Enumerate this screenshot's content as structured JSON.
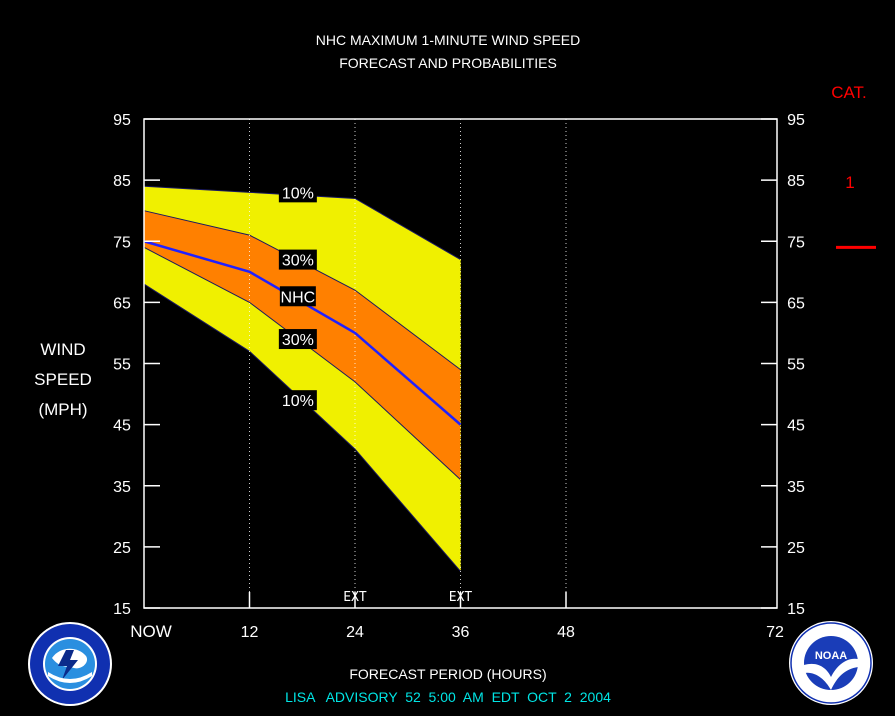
{
  "header": {
    "title_line1": "NHC MAXIMUM 1-MINUTE WIND SPEED",
    "title_line2": "FORECAST AND PROBABILITIES"
  },
  "footer": {
    "advisory": "LISA   ADVISORY  52  5:00  AM  EDT  OCT  2  2004"
  },
  "logos": {
    "left": {
      "name": "national-weather-service-logo",
      "text": "NATIONAL WEATHER SERVICE"
    },
    "right": {
      "name": "noaa-logo",
      "text": "NOAA"
    }
  },
  "colors": {
    "background": "#000000",
    "band_10": "#f0f000",
    "band_30": "#ff8000",
    "nhc_line": "#2020ff",
    "frame": "#ffffff",
    "grid": "#ffffff",
    "category": "#ff0000",
    "footer": "#00e5e5"
  },
  "chart_data": {
    "type": "area",
    "title": "NHC MAXIMUM 1-MINUTE WIND SPEED",
    "subtitle": "FORECAST AND PROBABILITIES",
    "xlabel": "FORECAST PERIOD (HOURS)",
    "ylabel": [
      "WIND",
      "SPEED",
      "(MPH)"
    ],
    "xlim": [
      0,
      72
    ],
    "ylim": [
      15,
      95
    ],
    "x_ticks": [
      {
        "x": 0,
        "label": "NOW"
      },
      {
        "x": 12,
        "label": "12"
      },
      {
        "x": 24,
        "label": "24"
      },
      {
        "x": 36,
        "label": "36"
      },
      {
        "x": 48,
        "label": "48"
      },
      {
        "x": 72,
        "label": "72"
      }
    ],
    "y_ticks": [
      15,
      25,
      35,
      45,
      55,
      65,
      75,
      85,
      95
    ],
    "vertical_gridlines": [
      12,
      24,
      36,
      48
    ],
    "ext_markers": [
      {
        "x": 24,
        "label": "EXT"
      },
      {
        "x": 36,
        "label": "EXT"
      }
    ],
    "x": [
      0,
      12,
      24,
      36
    ],
    "series": [
      {
        "name": "10%",
        "role": "upper-10",
        "values": [
          84,
          83,
          82,
          72
        ]
      },
      {
        "name": "30%",
        "role": "upper-30",
        "values": [
          80,
          76,
          67,
          54
        ]
      },
      {
        "name": "NHC",
        "role": "nhc",
        "values": [
          75,
          70,
          60,
          45
        ]
      },
      {
        "name": "30%",
        "role": "lower-30",
        "values": [
          74,
          65,
          52,
          36
        ]
      },
      {
        "name": "10%",
        "role": "lower-10",
        "values": [
          68,
          57,
          41,
          21
        ]
      }
    ],
    "band_labels": [
      {
        "text": "10%",
        "x": 17.5,
        "y": 83
      },
      {
        "text": "30%",
        "x": 17.5,
        "y": 72
      },
      {
        "text": "NHC",
        "x": 17.5,
        "y": 66
      },
      {
        "text": "30%",
        "x": 17.5,
        "y": 59
      },
      {
        "text": "10%",
        "x": 17.5,
        "y": 49
      }
    ],
    "category": {
      "title": "CAT.",
      "levels": [
        {
          "label": "1",
          "threshold": 74
        }
      ]
    },
    "grid": true
  }
}
